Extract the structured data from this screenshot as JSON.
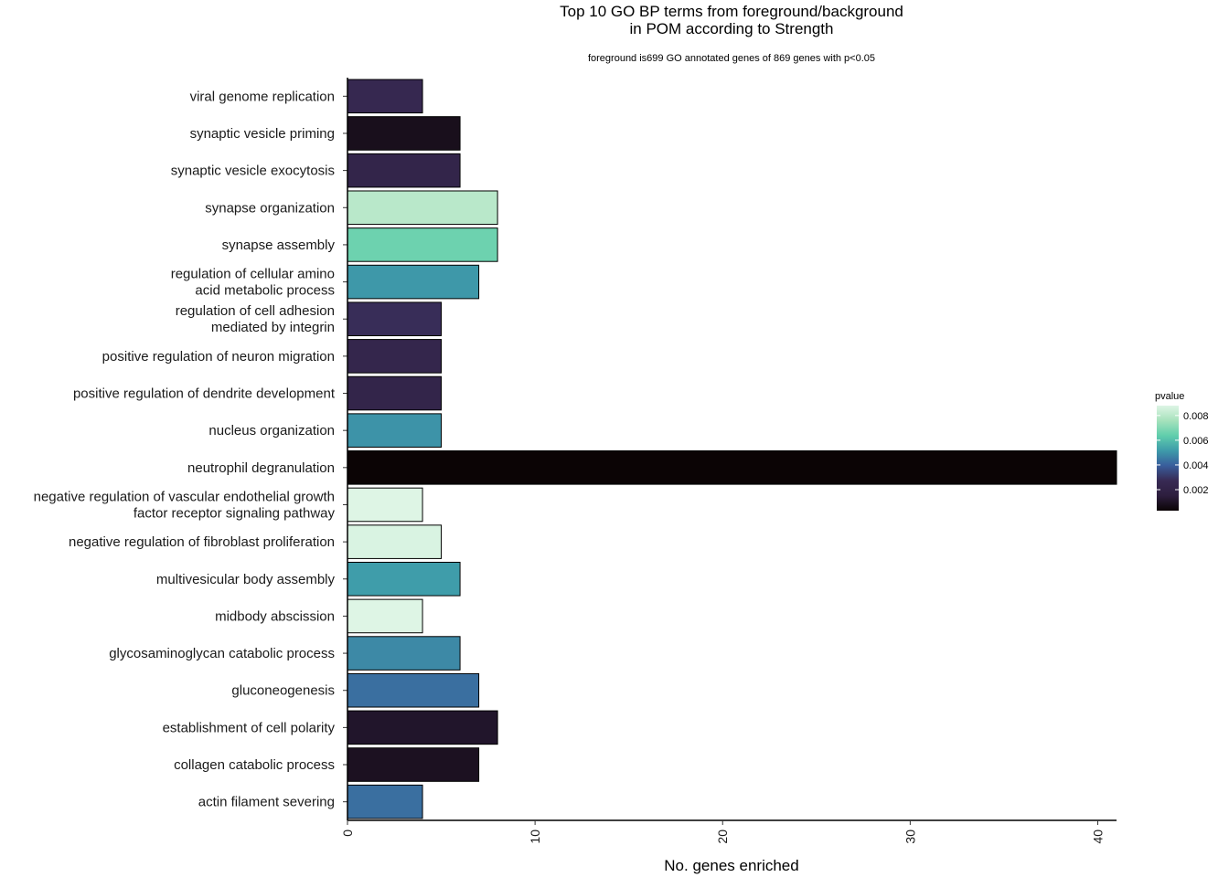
{
  "chart_data": {
    "type": "bar",
    "orientation": "horizontal",
    "title": "Top 10 GO BP terms from foreground/background\nin POM according to Strength",
    "subtitle": "foreground is699 GO annotated genes of 869 genes with p<0.05",
    "xlabel": "No. genes enriched",
    "ylabel": "",
    "xlim": [
      0,
      41
    ],
    "xticks": [
      0,
      10,
      20,
      30,
      40
    ],
    "grid": false,
    "legend": {
      "title": "pvalue",
      "placement": "right",
      "range": [
        0.0003,
        0.0088
      ],
      "ticks": [
        {
          "value": 0.002,
          "label": "0.002"
        },
        {
          "value": 0.004,
          "label": "0.004"
        },
        {
          "value": 0.006,
          "label": "0.006"
        },
        {
          "value": 0.008,
          "label": "0.008"
        }
      ]
    },
    "colormap": [
      "#0b0405",
      "#2d1e3e",
      "#382a54",
      "#395d9c",
      "#3e9baa",
      "#60ceac",
      "#a6e2bc",
      "#def5e5"
    ],
    "categories": [
      "viral genome replication",
      "synaptic vesicle priming",
      "synaptic vesicle exocytosis",
      "synapse organization",
      "synapse assembly",
      "regulation of cellular amino\nacid metabolic process",
      "regulation of cell adhesion\nmediated by integrin",
      "positive regulation of neuron migration",
      "positive regulation of dendrite development",
      "nucleus organization",
      "neutrophil degranulation",
      "negative regulation of vascular endothelial growth\nfactor receptor signaling pathway",
      "negative regulation of fibroblast proliferation",
      "multivesicular body assembly",
      "midbody abscission",
      "glycosaminoglycan catabolic process",
      "gluconeogenesis",
      "establishment of cell polarity",
      "collagen catabolic process",
      "actin filament severing"
    ],
    "values": [
      4,
      6,
      6,
      8,
      8,
      7,
      5,
      5,
      5,
      5,
      41,
      4,
      5,
      6,
      4,
      6,
      7,
      8,
      7,
      4
    ],
    "pvalues": [
      0.0025,
      0.0008,
      0.0022,
      0.008,
      0.0066,
      0.0051,
      0.0028,
      0.0023,
      0.0022,
      0.005,
      0.0003,
      0.0088,
      0.0087,
      0.0052,
      0.0088,
      0.0048,
      0.0043,
      0.0011,
      0.0009,
      0.0043
    ]
  }
}
